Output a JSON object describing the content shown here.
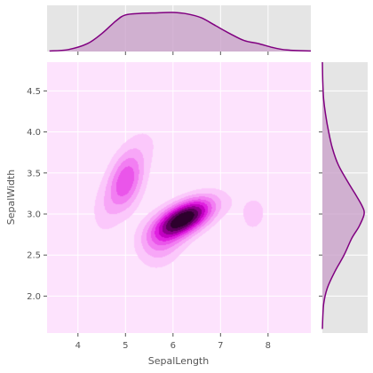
{
  "chart_data": {
    "type": "kde-joint",
    "xlabel": "SepalLength",
    "ylabel": "SepalWidth",
    "xlim": [
      3.35,
      8.9
    ],
    "ylim": [
      1.55,
      4.85
    ],
    "x_ticks": [
      4,
      5,
      6,
      7,
      8
    ],
    "y_ticks": [
      2.0,
      2.5,
      3.0,
      3.5,
      4.0,
      4.5
    ],
    "grid": true,
    "colors": {
      "background": "#e5e5e5",
      "joint_background": "#fde3fd",
      "grid": "#ffffff",
      "marginal_line": "#800080",
      "marginal_fill": "#c89ec8",
      "levels": [
        "#fbc8fb",
        "#f7a6f7",
        "#f27ef2",
        "#ea55ea",
        "#e020e0",
        "#c200c2",
        "#8e008e",
        "#5a005a",
        "#2d002d"
      ]
    },
    "kde_clusters": [
      {
        "x": 5.0,
        "y": 3.4,
        "sx": 0.28,
        "sy": 0.27,
        "rho": 0.35,
        "weight": 1.05
      },
      {
        "x": 6.25,
        "y": 2.95,
        "sx": 0.42,
        "sy": 0.17,
        "rho": 0.55,
        "weight": 2.1
      },
      {
        "x": 5.75,
        "y": 2.65,
        "sx": 0.35,
        "sy": 0.22,
        "rho": 0.2,
        "weight": 0.55
      },
      {
        "x": 7.7,
        "y": 3.0,
        "sx": 0.35,
        "sy": 0.28,
        "rho": 0.1,
        "weight": 0.25
      },
      {
        "x": 5.5,
        "y": 3.9,
        "sx": 0.3,
        "sy": 0.2,
        "rho": 0.0,
        "weight": 0.15
      },
      {
        "x": 4.5,
        "y": 3.0,
        "sx": 0.22,
        "sy": 0.25,
        "rho": 0.0,
        "weight": 0.2
      }
    ],
    "marginal_x": {
      "x": [
        3.4,
        3.8,
        4.2,
        4.5,
        4.8,
        5.0,
        5.3,
        5.6,
        6.0,
        6.3,
        6.6,
        6.9,
        7.2,
        7.5,
        7.8,
        8.1,
        8.4,
        8.9
      ],
      "density": [
        0.005,
        0.02,
        0.08,
        0.18,
        0.31,
        0.37,
        0.385,
        0.39,
        0.395,
        0.38,
        0.34,
        0.26,
        0.18,
        0.11,
        0.08,
        0.04,
        0.015,
        0.005
      ]
    },
    "marginal_y": {
      "y": [
        1.6,
        1.9,
        2.1,
        2.3,
        2.5,
        2.7,
        2.85,
        3.0,
        3.1,
        3.25,
        3.4,
        3.6,
        3.8,
        4.0,
        4.2,
        4.4,
        4.6,
        4.85
      ],
      "density": [
        0.0,
        0.03,
        0.12,
        0.3,
        0.52,
        0.7,
        0.88,
        1.0,
        0.95,
        0.78,
        0.6,
        0.38,
        0.24,
        0.15,
        0.08,
        0.03,
        0.01,
        0.0
      ]
    }
  }
}
